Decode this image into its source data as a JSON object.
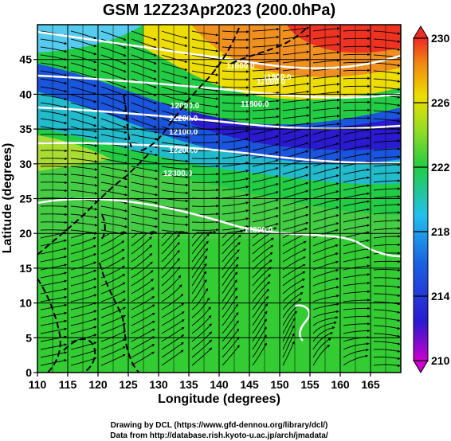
{
  "title": "GSM 12Z23Apr2023 (200.0hPa)",
  "xlabel": "Longitude (degrees)",
  "ylabel": "Latitude  (degrees)",
  "x_ticks": [
    "110",
    "115",
    "120",
    "125",
    "130",
    "135",
    "140",
    "145",
    "150",
    "155",
    "160",
    "165"
  ],
  "y_ticks": [
    "0",
    "5",
    "10",
    "15",
    "20",
    "25",
    "30",
    "35",
    "40",
    "45"
  ],
  "colorbar_ticks": [
    "210",
    "214",
    "218",
    "222",
    "226",
    "230"
  ],
  "contour_labels": [
    "11800.0",
    "12000.0",
    "12000.0",
    "12200.0",
    "12100.0",
    "12200.0",
    "12300.0",
    "11800.0",
    "11900.0",
    "12300.0"
  ],
  "credits": [
    "Drawing by DCL (https://www.gfd-dennou.org/library/dcl/)",
    "Data from http://database.rish.kyoto-u.ac.jp/arch/jmadata/"
  ],
  "colors": {
    "min": "#cc00cc",
    "low": "#1a1ad0",
    "mid_low": "#22bbee",
    "mid": "#22cc33",
    "mid_high": "#eedd00",
    "high": "#ee3322"
  },
  "chart_data": {
    "type": "heatmap",
    "variable": "200.0hPa",
    "xlim": [
      110,
      170
    ],
    "ylim": [
      0,
      50
    ],
    "colorbar_range": [
      210,
      230
    ],
    "overlays": [
      "streamlines",
      "height contours",
      "coastlines"
    ]
  }
}
